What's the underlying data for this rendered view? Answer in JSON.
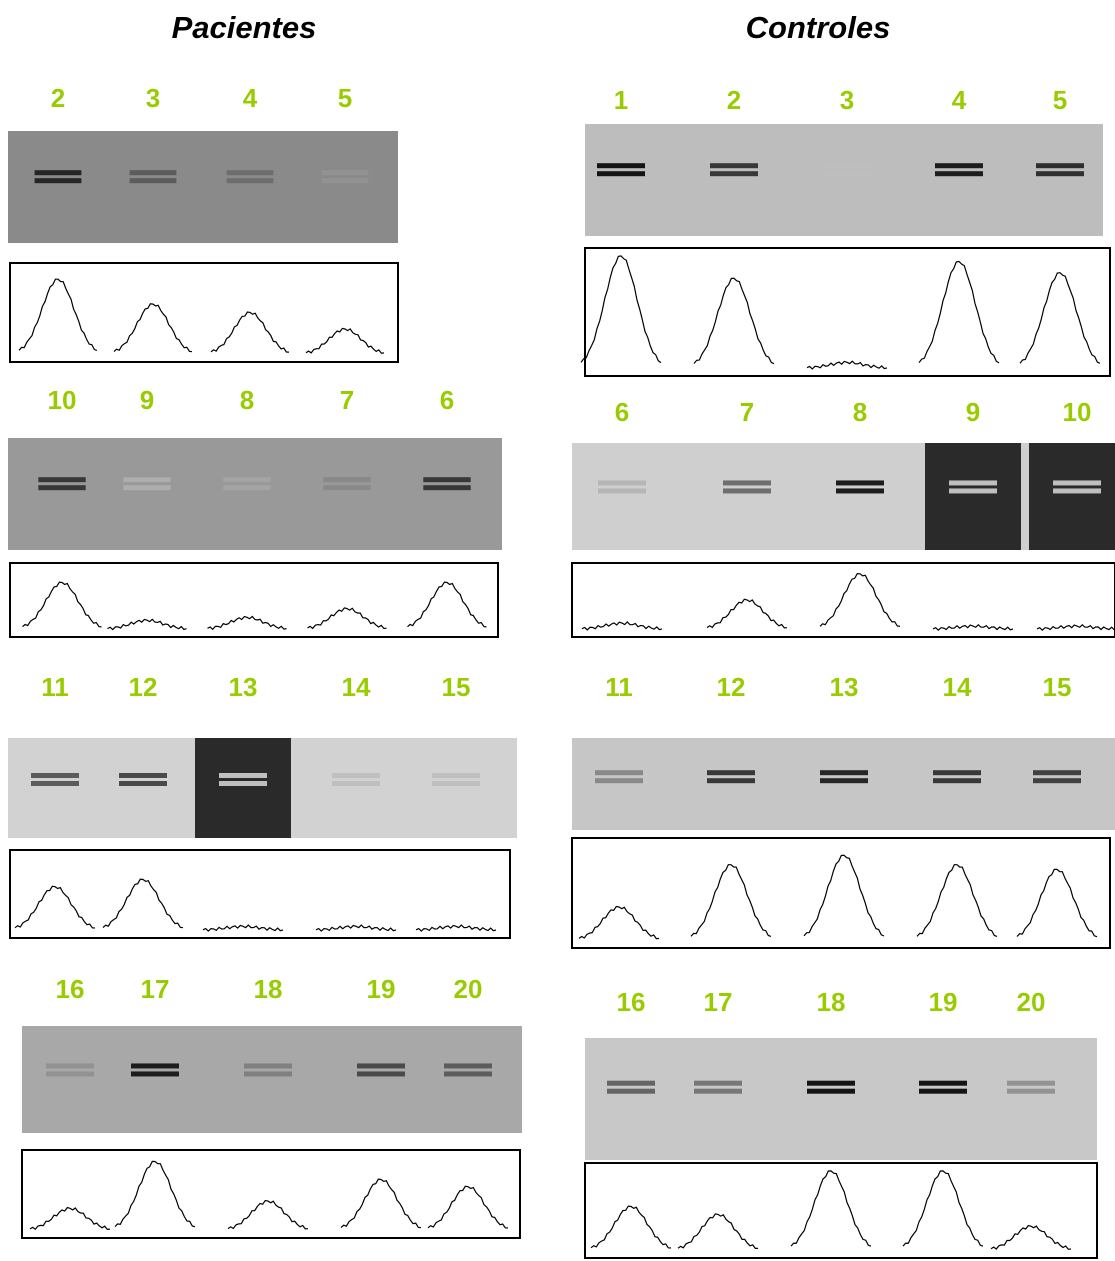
{
  "left": {
    "title": "Pacientes",
    "panels": [
      {
        "lanes": [
          "2",
          "3",
          "4",
          "5"
        ]
      },
      {
        "lanes": [
          "10",
          "9",
          "8",
          "7",
          "6"
        ]
      },
      {
        "lanes": [
          "11",
          "12",
          "13",
          "14",
          "15"
        ]
      },
      {
        "lanes": [
          "16",
          "17",
          "18",
          "19",
          "20"
        ]
      }
    ]
  },
  "right": {
    "title": "Controles",
    "panels": [
      {
        "lanes": [
          "1",
          "2",
          "3",
          "4",
          "5"
        ]
      },
      {
        "lanes": [
          "6",
          "7",
          "8",
          "9",
          "10"
        ]
      },
      {
        "lanes": [
          "11",
          "12",
          "13",
          "14",
          "15"
        ]
      },
      {
        "lanes": [
          "16",
          "17",
          "18",
          "19",
          "20"
        ]
      }
    ]
  }
}
